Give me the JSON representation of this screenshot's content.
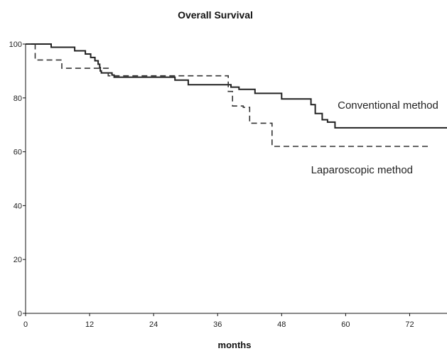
{
  "chart_data": {
    "type": "line",
    "title": "Overall Survival",
    "xlabel": "months",
    "ylabel": "",
    "xlim": [
      0,
      79
    ],
    "ylim": [
      0,
      100
    ],
    "x_ticks": [
      0,
      12,
      24,
      36,
      48,
      60,
      72
    ],
    "y_ticks": [
      0,
      20,
      40,
      60,
      80,
      100
    ],
    "grid": false,
    "legend": "inline labels near curves",
    "series": [
      {
        "name": "Conventional method",
        "style": "solid",
        "color": "#222222",
        "points": [
          [
            0,
            100
          ],
          [
            4.8,
            100
          ],
          [
            4.8,
            98.8
          ],
          [
            9.2,
            98.8
          ],
          [
            9.2,
            97.5
          ],
          [
            11.2,
            97.5
          ],
          [
            11.2,
            96.3
          ],
          [
            12.2,
            96.3
          ],
          [
            12.2,
            95.0
          ],
          [
            13.0,
            95.0
          ],
          [
            13.0,
            93.8
          ],
          [
            13.6,
            93.8
          ],
          [
            13.6,
            92.5
          ],
          [
            13.9,
            92.5
          ],
          [
            13.9,
            91.3
          ],
          [
            14.0,
            91.3
          ],
          [
            14.0,
            90.0
          ],
          [
            14.2,
            90.0
          ],
          [
            14.2,
            89.3
          ],
          [
            16.2,
            89.3
          ],
          [
            16.2,
            88.5
          ],
          [
            16.6,
            88.5
          ],
          [
            16.6,
            87.7
          ],
          [
            28.0,
            87.7
          ],
          [
            28.0,
            86.6
          ],
          [
            30.5,
            86.6
          ],
          [
            30.5,
            84.9
          ],
          [
            38.5,
            84.9
          ],
          [
            38.5,
            84.0
          ],
          [
            40.0,
            84.0
          ],
          [
            40.0,
            83.2
          ],
          [
            43.0,
            83.2
          ],
          [
            43.0,
            81.7
          ],
          [
            48.0,
            81.7
          ],
          [
            48.0,
            79.6
          ],
          [
            53.5,
            79.6
          ],
          [
            53.5,
            77.5
          ],
          [
            54.3,
            77.5
          ],
          [
            54.3,
            74.2
          ],
          [
            55.6,
            74.2
          ],
          [
            55.6,
            71.9
          ],
          [
            56.6,
            71.9
          ],
          [
            56.6,
            71.0
          ],
          [
            58.0,
            71.0
          ],
          [
            58.0,
            68.9
          ],
          [
            79,
            68.9
          ]
        ]
      },
      {
        "name": "Laparoscopic method",
        "style": "dashed",
        "color": "#333333",
        "points": [
          [
            0,
            100
          ],
          [
            1.8,
            100
          ],
          [
            1.8,
            94.1
          ],
          [
            6.8,
            94.1
          ],
          [
            6.8,
            91.0
          ],
          [
            15.5,
            91.0
          ],
          [
            15.5,
            88.2
          ],
          [
            38.0,
            88.2
          ],
          [
            38.0,
            82.4
          ],
          [
            38.8,
            82.4
          ],
          [
            38.8,
            77.0
          ],
          [
            40.8,
            77.0
          ],
          [
            40.8,
            76.5
          ],
          [
            42.0,
            76.5
          ],
          [
            42.0,
            70.6
          ],
          [
            46.2,
            70.6
          ],
          [
            46.2,
            62.0
          ],
          [
            75.5,
            62.0
          ]
        ]
      }
    ],
    "annotations": [
      {
        "text": "Conventional method",
        "x": 58.5,
        "y": 76
      },
      {
        "text": "Laparoscopic method",
        "x": 53.5,
        "y": 52
      }
    ]
  }
}
